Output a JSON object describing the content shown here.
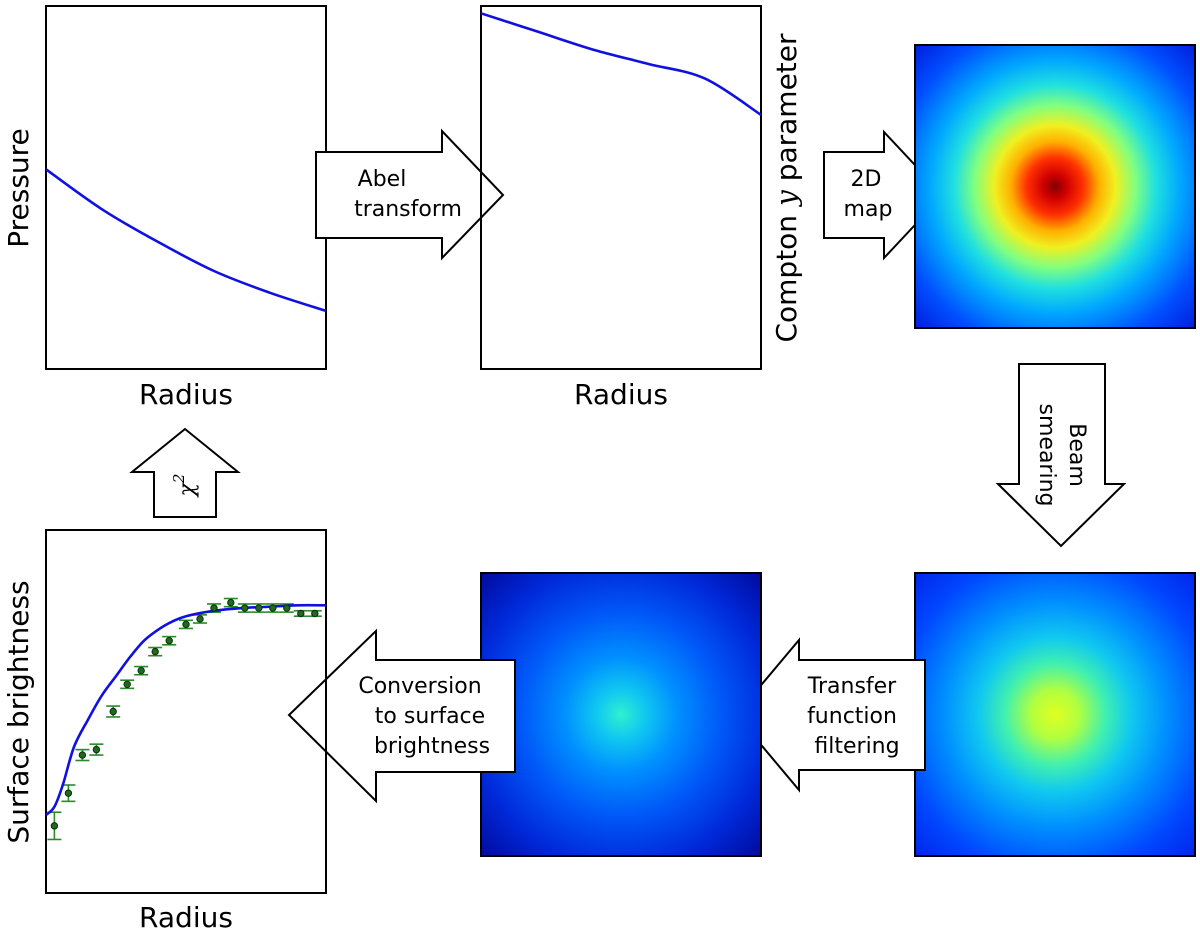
{
  "panels": {
    "pressure": {
      "ylabel": "Pressure",
      "xlabel": "Radius"
    },
    "compton_profile": {
      "ylabel_prefix": "Compton ",
      "ylabel_symbol": "y",
      "ylabel_suffix": " parameter",
      "xlabel": "Radius"
    },
    "surface_brightness": {
      "ylabel": "Surface brightness",
      "xlabel": "Radius"
    }
  },
  "arrows": {
    "abel": {
      "line1": "Abel",
      "line2": "transform"
    },
    "map2d": {
      "line1": "2D",
      "line2": "map"
    },
    "beam": {
      "line1": "Beam",
      "line2": "smearing"
    },
    "transfer": {
      "line1": "Transfer",
      "line2": "function",
      "line3": "filtering"
    },
    "conversion": {
      "line1": "Conversion",
      "line2": "to surface",
      "line3": "brightness"
    },
    "chi2": {
      "symbol": "χ",
      "exponent": "2"
    }
  },
  "colors": {
    "model_curve": "#1010e0",
    "data_points": "#1f6a1f",
    "error_bars": "#2a8a2a",
    "colormap": "jet"
  },
  "chart_data": [
    {
      "type": "line",
      "xlabel": "Radius",
      "ylabel": "Pressure",
      "series": [
        {
          "x": [
            0,
            0.2,
            0.4,
            0.6,
            0.8,
            1.0
          ],
          "y": [
            0.55,
            0.44,
            0.35,
            0.27,
            0.21,
            0.16
          ]
        }
      ]
    },
    {
      "type": "line",
      "xlabel": "Radius",
      "ylabel": "Compton y parameter",
      "series": [
        {
          "x": [
            0,
            0.2,
            0.4,
            0.6,
            0.8,
            1.0
          ],
          "y": [
            0.98,
            0.93,
            0.88,
            0.84,
            0.8,
            0.7
          ]
        }
      ]
    },
    {
      "type": "heatmap",
      "description_of_content": "radially symmetric 2D map",
      "peak_level": 1.0,
      "edge_level": 0.15
    },
    {
      "type": "heatmap",
      "peak_level": 0.62,
      "edge_level": 0.17
    },
    {
      "type": "heatmap",
      "peak_level": 0.38,
      "edge_level": 0.02
    },
    {
      "type": "scatter",
      "xlabel": "Radius",
      "ylabel": "Surface brightness",
      "model": {
        "x": [
          0,
          0.03,
          0.06,
          0.1,
          0.15,
          0.2,
          0.25,
          0.3,
          0.35,
          0.4,
          0.45,
          0.5,
          0.6,
          0.7,
          0.8,
          0.9,
          1.0
        ],
        "y": [
          0.22,
          0.25,
          0.33,
          0.47,
          0.57,
          0.66,
          0.73,
          0.8,
          0.86,
          0.9,
          0.93,
          0.95,
          0.97,
          0.98,
          0.985,
          0.99,
          0.99
        ]
      },
      "points": [
        {
          "x": 0.03,
          "y": 0.18,
          "err": 0.05
        },
        {
          "x": 0.08,
          "y": 0.3,
          "err": 0.03
        },
        {
          "x": 0.13,
          "y": 0.44,
          "err": 0.02
        },
        {
          "x": 0.18,
          "y": 0.46,
          "err": 0.02
        },
        {
          "x": 0.24,
          "y": 0.6,
          "err": 0.02
        },
        {
          "x": 0.29,
          "y": 0.7,
          "err": 0.015
        },
        {
          "x": 0.34,
          "y": 0.75,
          "err": 0.015
        },
        {
          "x": 0.39,
          "y": 0.82,
          "err": 0.015
        },
        {
          "x": 0.44,
          "y": 0.86,
          "err": 0.015
        },
        {
          "x": 0.5,
          "y": 0.92,
          "err": 0.015
        },
        {
          "x": 0.55,
          "y": 0.94,
          "err": 0.015
        },
        {
          "x": 0.6,
          "y": 0.98,
          "err": 0.015
        },
        {
          "x": 0.66,
          "y": 1.0,
          "err": 0.015
        },
        {
          "x": 0.71,
          "y": 0.98,
          "err": 0.015
        },
        {
          "x": 0.76,
          "y": 0.98,
          "err": 0.015
        },
        {
          "x": 0.81,
          "y": 0.98,
          "err": 0.015
        },
        {
          "x": 0.86,
          "y": 0.98,
          "err": 0.015
        },
        {
          "x": 0.91,
          "y": 0.96,
          "err": 0.01
        },
        {
          "x": 0.96,
          "y": 0.96,
          "err": 0.01
        }
      ]
    }
  ]
}
